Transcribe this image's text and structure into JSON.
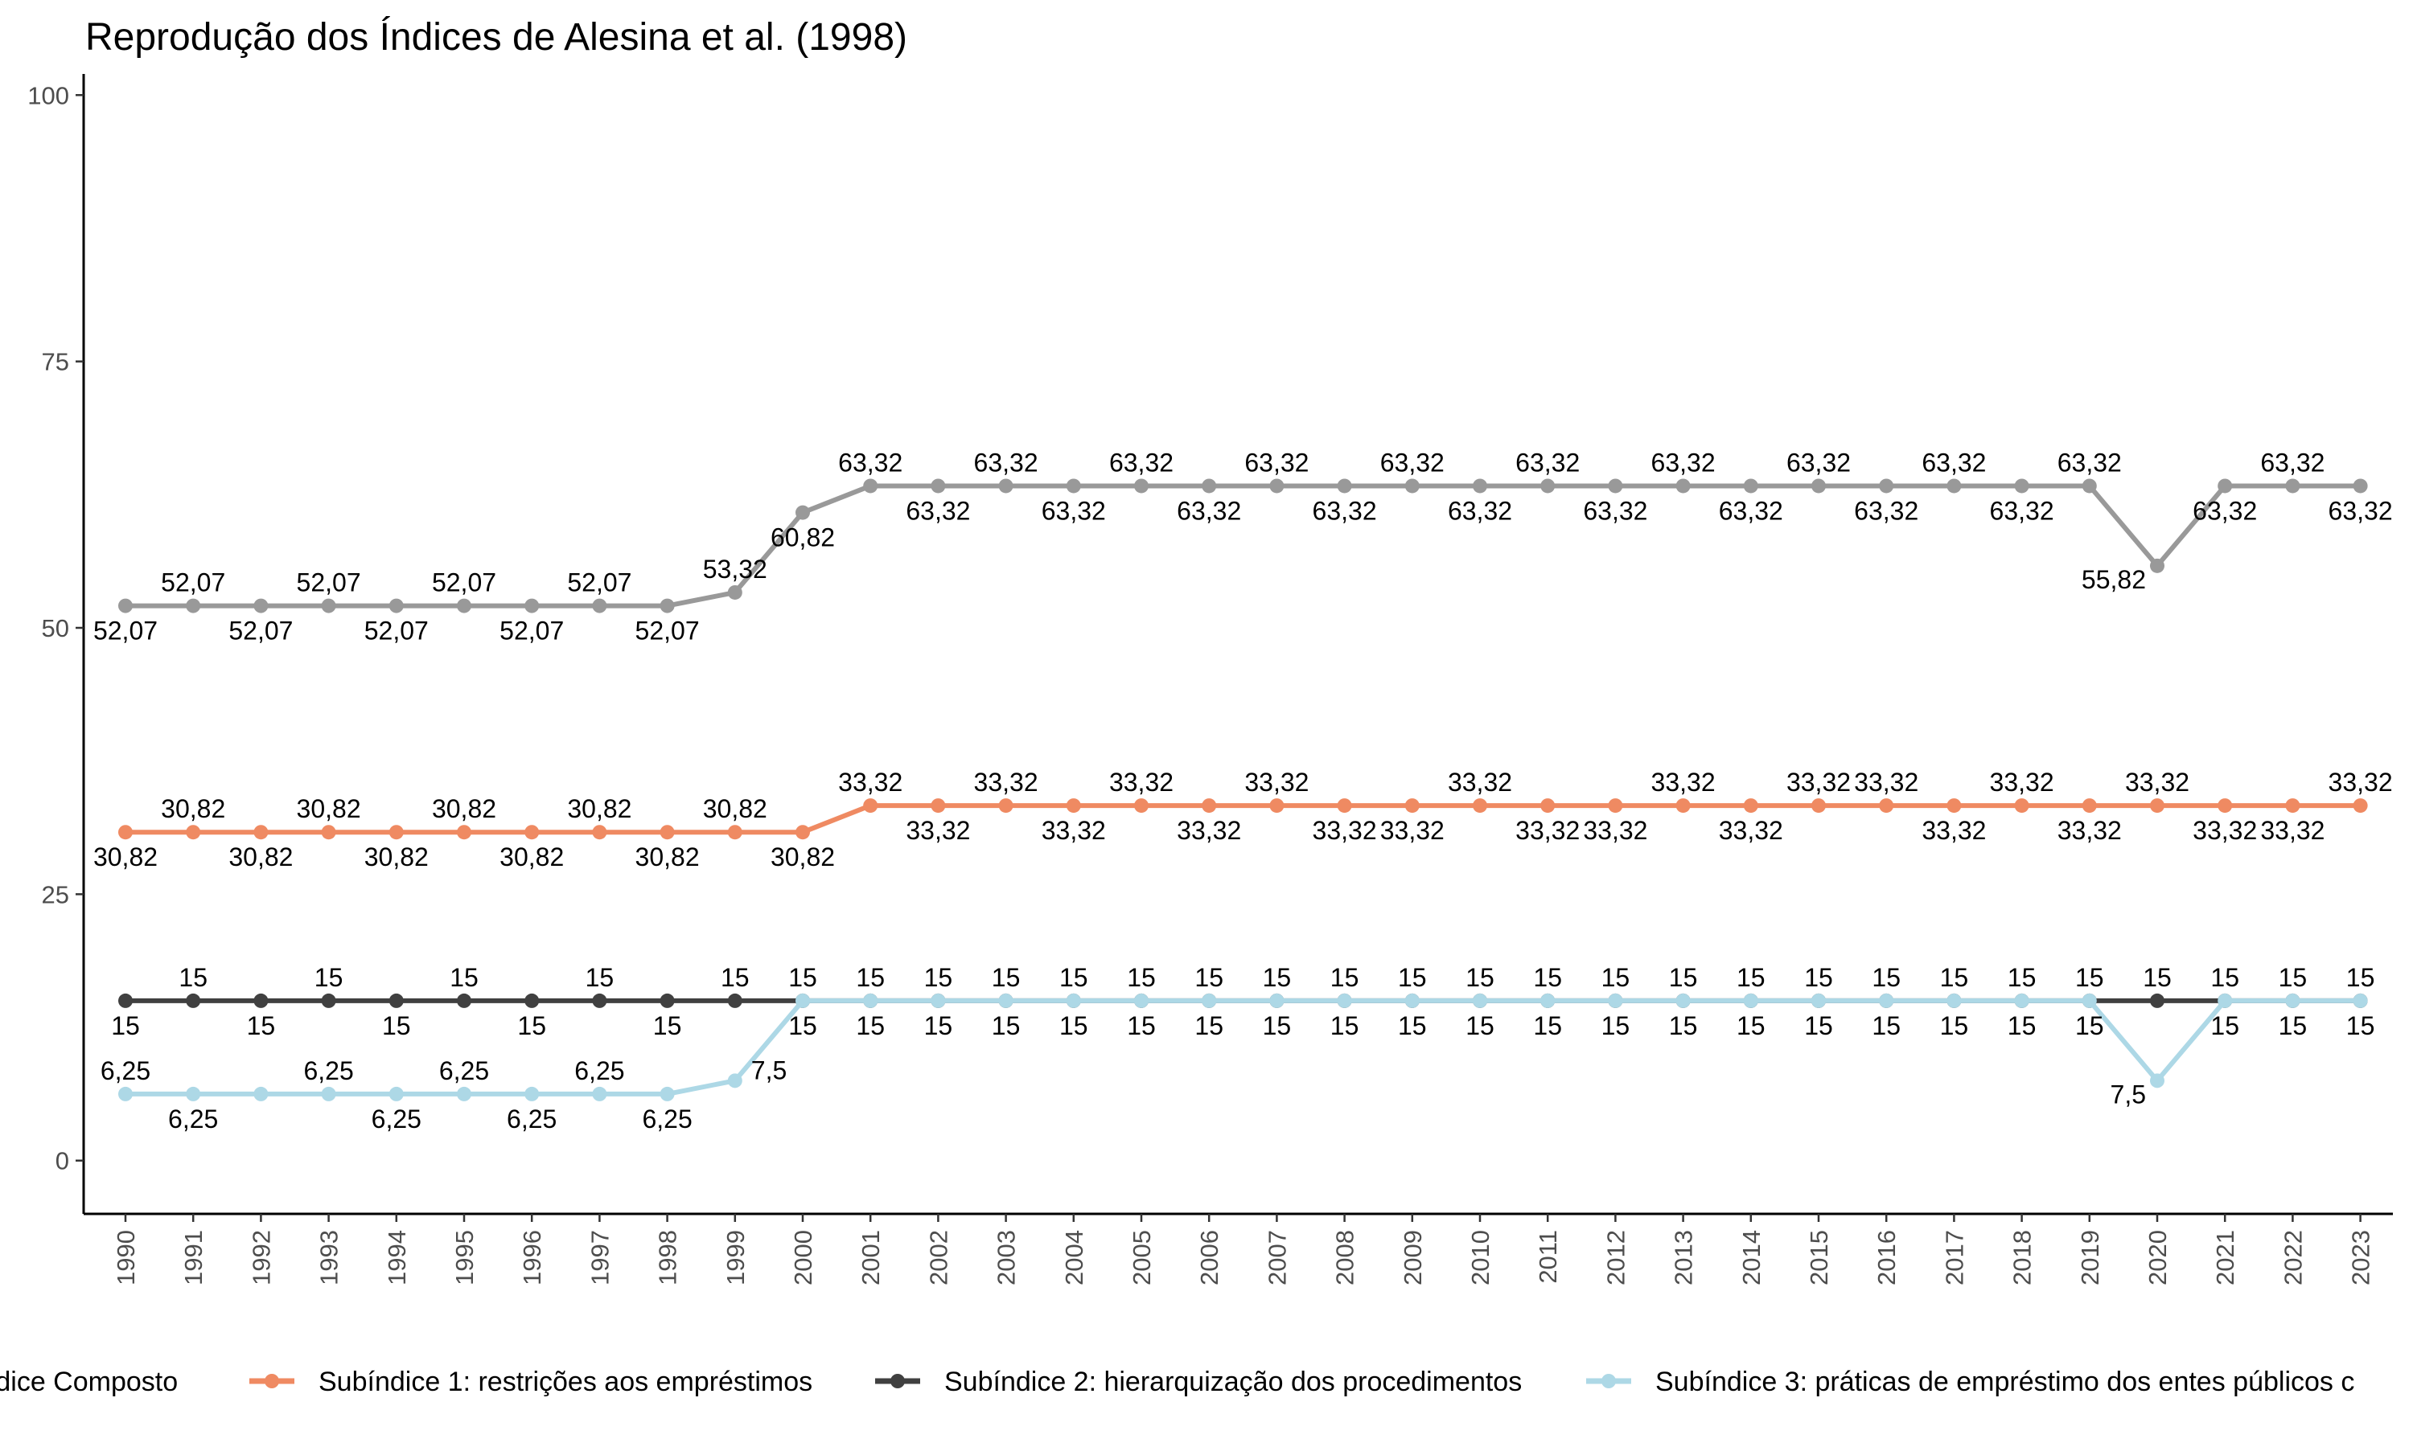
{
  "chart_data": {
    "type": "line",
    "title": "Reprodução dos Índices de Alesina et al. (1998)",
    "xlabel": "",
    "ylabel": "",
    "ylim": [
      -5,
      105
    ],
    "y_ticks": [
      "0",
      "25",
      "50",
      "75",
      "100"
    ],
    "grid": false,
    "legend_position": "bottom",
    "x": [
      "1990",
      "1991",
      "1992",
      "1993",
      "1994",
      "1995",
      "1996",
      "1997",
      "1998",
      "1999",
      "2000",
      "2001",
      "2002",
      "2003",
      "2004",
      "2005",
      "2006",
      "2007",
      "2008",
      "2009",
      "2010",
      "2011",
      "2012",
      "2013",
      "2014",
      "2015",
      "2016",
      "2017",
      "2018",
      "2019",
      "2020",
      "2021",
      "2022",
      "2023"
    ],
    "series": [
      {
        "name": "Índice Composto",
        "color": "#999999",
        "values": [
          52.07,
          52.07,
          52.07,
          52.07,
          52.07,
          52.07,
          52.07,
          52.07,
          52.07,
          53.32,
          60.82,
          63.32,
          63.32,
          63.32,
          63.32,
          63.32,
          63.32,
          63.32,
          63.32,
          63.32,
          63.32,
          63.32,
          63.32,
          63.32,
          63.32,
          63.32,
          63.32,
          63.32,
          63.32,
          63.32,
          55.82,
          63.32,
          63.32,
          63.32
        ],
        "labels": [
          "52,07",
          "52,07",
          "52,07",
          "52,07",
          "52,07",
          "52,07",
          "52,07",
          "52,07",
          "52,07",
          "53,32",
          "60,82",
          "63,32",
          "63,32",
          "63,32",
          "63,32",
          "63,32",
          "63,32",
          "63,32",
          "63,32",
          "63,32",
          "63,32",
          "63,32",
          "63,32",
          "63,32",
          "63,32",
          "63,32",
          "63,32",
          "63,32",
          "63,32",
          "63,32",
          "55,82",
          "63,32",
          "63,32",
          "63,32"
        ],
        "label_side": [
          "below",
          "above",
          "below",
          "above",
          "below",
          "above",
          "below",
          "above",
          "below",
          "above",
          "below",
          "above",
          "below",
          "above",
          "below",
          "above",
          "below",
          "above",
          "below",
          "above",
          "below",
          "above",
          "below",
          "above",
          "below",
          "above",
          "below",
          "above",
          "below",
          "above",
          "left",
          "below",
          "above",
          "below"
        ]
      },
      {
        "name": "Subíndice 1: restrições aos empréstimos",
        "color": "#ef8a62",
        "values": [
          30.82,
          30.82,
          30.82,
          30.82,
          30.82,
          30.82,
          30.82,
          30.82,
          30.82,
          30.82,
          30.82,
          33.32,
          33.32,
          33.32,
          33.32,
          33.32,
          33.32,
          33.32,
          33.32,
          33.32,
          33.32,
          33.32,
          33.32,
          33.32,
          33.32,
          33.32,
          33.32,
          33.32,
          33.32,
          33.32,
          33.32,
          33.32,
          33.32,
          33.32
        ],
        "labels": [
          "30,82",
          "30,82",
          "30,82",
          "30,82",
          "30,82",
          "30,82",
          "30,82",
          "30,82",
          "30,82",
          "30,82",
          "30,82",
          "33,32",
          "33,32",
          "33,32",
          "33,32",
          "33,32",
          "33,32",
          "33,32",
          "33,32",
          "33,32",
          "33,32",
          "33,32",
          "33,32",
          "33,32",
          "33,32",
          "33,32",
          "33,32",
          "33,32",
          "33,32",
          "33,32",
          "33,32",
          "33,32",
          "33,32",
          "33,32"
        ],
        "label_side": [
          "below",
          "above",
          "below",
          "above",
          "below",
          "above",
          "below",
          "above",
          "below",
          "above",
          "below",
          "above",
          "below",
          "above",
          "below",
          "above",
          "below",
          "above",
          "below",
          "below",
          "above",
          "below",
          "below",
          "above",
          "below",
          "above",
          "above",
          "below",
          "above",
          "below",
          "above",
          "below",
          "below",
          "above"
        ]
      },
      {
        "name": "Subíndice 2: hierarquização dos procedimentos",
        "color": "#404040",
        "values": [
          15,
          15,
          15,
          15,
          15,
          15,
          15,
          15,
          15,
          15,
          15,
          15,
          15,
          15,
          15,
          15,
          15,
          15,
          15,
          15,
          15,
          15,
          15,
          15,
          15,
          15,
          15,
          15,
          15,
          15,
          15,
          15,
          15,
          15
        ],
        "labels": [
          "15",
          "15",
          "15",
          "15",
          "15",
          "15",
          "15",
          "15",
          "15",
          "15",
          "15",
          "15",
          "15",
          "15",
          "15",
          "15",
          "15",
          "15",
          "15",
          "15",
          "15",
          "15",
          "15",
          "15",
          "15",
          "15",
          "15",
          "15",
          "15",
          "15",
          "15",
          "15",
          "15",
          "15"
        ],
        "label_side": [
          "below",
          "above",
          "below",
          "above",
          "below",
          "above",
          "below",
          "above",
          "below",
          "above",
          "above",
          "above",
          "above",
          "above",
          "above",
          "above",
          "above",
          "above",
          "above",
          "above",
          "above",
          "above",
          "above",
          "above",
          "above",
          "above",
          "above",
          "above",
          "above",
          "above",
          "above",
          "above",
          "above",
          "above"
        ]
      },
      {
        "name": "Subíndice 3: práticas de empréstimo dos entes públicos c",
        "color": "#add8e6",
        "values": [
          6.25,
          6.25,
          6.25,
          6.25,
          6.25,
          6.25,
          6.25,
          6.25,
          6.25,
          7.5,
          15,
          15,
          15,
          15,
          15,
          15,
          15,
          15,
          15,
          15,
          15,
          15,
          15,
          15,
          15,
          15,
          15,
          15,
          15,
          15,
          7.5,
          15,
          15,
          15
        ],
        "labels": [
          "6,25",
          "6,25",
          "6,25",
          "6,25",
          "6,25",
          "6,25",
          "6,25",
          "6,25",
          "6,25",
          "7,5",
          "15",
          "15",
          "15",
          "15",
          "15",
          "15",
          "15",
          "15",
          "15",
          "15",
          "15",
          "15",
          "15",
          "15",
          "15",
          "15",
          "15",
          "15",
          "15",
          "15",
          "7,5",
          "15",
          "15",
          "15"
        ],
        "label_side": [
          "above",
          "below",
          "hidden",
          "above",
          "below",
          "above",
          "below",
          "above",
          "below",
          "right",
          "below",
          "below",
          "below",
          "below",
          "below",
          "below",
          "below",
          "below",
          "below",
          "below",
          "below",
          "below",
          "below",
          "below",
          "below",
          "below",
          "below",
          "below",
          "below",
          "below",
          "left",
          "below",
          "below",
          "below"
        ]
      }
    ]
  }
}
